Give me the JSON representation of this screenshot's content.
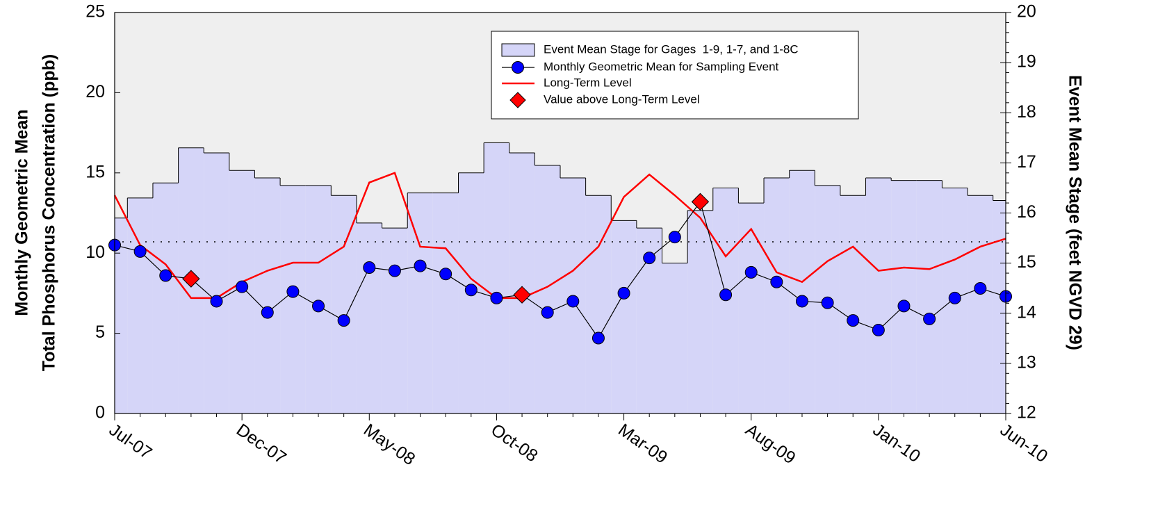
{
  "chart_data": {
    "type": "combo",
    "categories": [
      "Jul-07",
      null,
      null,
      null,
      null,
      "Dec-07",
      null,
      null,
      null,
      null,
      "May-08",
      null,
      null,
      null,
      null,
      "Oct-08",
      null,
      null,
      null,
      null,
      "Mar-09",
      null,
      null,
      null,
      null,
      "Aug-09",
      null,
      null,
      null,
      null,
      "Jan-10",
      null,
      null,
      null,
      null,
      "Jun-10"
    ],
    "y_label": [
      "Monthly Geometric Mean",
      "Total Phosphorus Concentration (ppb)"
    ],
    "y2_label": "Event Mean Stage (feet NGVD 29)",
    "ylim": [
      0,
      25
    ],
    "yticks": [
      0,
      5,
      10,
      15,
      20,
      25
    ],
    "y2lim": [
      12,
      20
    ],
    "y2ticks": [
      12,
      13,
      14,
      15,
      16,
      17,
      18,
      19,
      20
    ],
    "reference_line": 10.7,
    "series": [
      {
        "name": "Event Mean Stage for Gages  1-9, 1-7, and 1-8C",
        "type": "step-area",
        "axis": "y2",
        "color": "#d5d5f8",
        "values": [
          15.9,
          16.3,
          16.6,
          17.3,
          17.2,
          16.85,
          16.7,
          16.55,
          16.55,
          16.35,
          15.8,
          15.7,
          16.4,
          16.4,
          16.8,
          17.4,
          17.2,
          16.95,
          16.7,
          16.35,
          15.85,
          15.7,
          15.0,
          16.05,
          16.5,
          16.2,
          16.7,
          16.85,
          16.55,
          16.35,
          16.7,
          16.65,
          16.65,
          16.5,
          16.35,
          16.25
        ]
      },
      {
        "name": "Monthly Geometric Mean for Sampling Event",
        "type": "line-marker",
        "color": "#0000ff",
        "values": [
          10.5,
          10.1,
          8.6,
          8.4,
          7.0,
          7.9,
          6.3,
          7.6,
          6.7,
          5.8,
          9.1,
          8.9,
          9.2,
          8.7,
          7.7,
          7.2,
          7.4,
          6.3,
          7.0,
          4.7,
          7.5,
          9.7,
          11.0,
          13.2,
          7.4,
          8.8,
          8.2,
          7.0,
          6.9,
          5.8,
          5.2,
          6.7,
          5.9,
          7.2,
          7.8,
          7.3
        ]
      },
      {
        "name": "Long-Term Level",
        "type": "line",
        "color": "#ff0000",
        "values": [
          13.6,
          10.5,
          9.3,
          7.2,
          7.2,
          8.2,
          8.9,
          9.4,
          9.4,
          10.4,
          14.4,
          15.0,
          10.4,
          10.3,
          8.4,
          7.2,
          7.2,
          7.9,
          8.9,
          10.4,
          13.5,
          14.9,
          13.6,
          12.2,
          9.8,
          11.5,
          8.8,
          8.2,
          9.5,
          10.4,
          8.9,
          9.1,
          9.0,
          9.6,
          10.4,
          10.9
        ]
      },
      {
        "name": "Value above Long-Term Level",
        "type": "marker",
        "color": "#ff0000",
        "values": [
          null,
          null,
          null,
          8.4,
          null,
          null,
          null,
          null,
          null,
          null,
          null,
          null,
          null,
          null,
          null,
          null,
          7.4,
          null,
          null,
          null,
          null,
          null,
          null,
          13.2,
          null,
          null,
          null,
          null,
          null,
          null,
          null,
          null,
          null,
          null,
          null,
          null
        ]
      }
    ],
    "plot_background": "#efefef"
  }
}
